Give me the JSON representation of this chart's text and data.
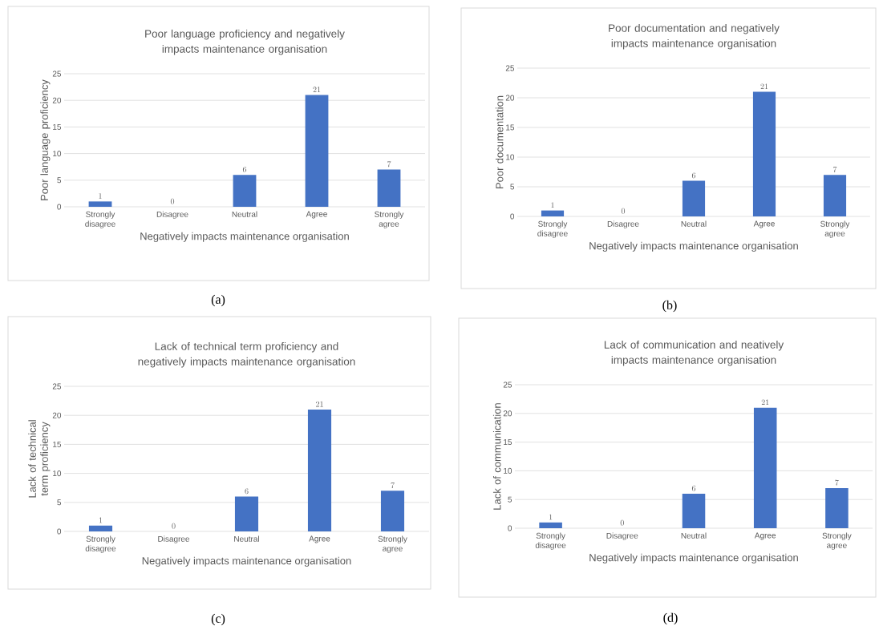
{
  "chart_data": [
    {
      "type": "bar",
      "title": "Poor language proficiency and negatively impacts maintenance organisation",
      "xlabel": "Negatively impacts maintenance organisation",
      "ylabel": "Poor language proficiency",
      "categories": [
        "Strongly disagree",
        "Disagree",
        "Neutral",
        "Agree",
        "Strongly agree"
      ],
      "values": [
        1,
        0,
        6,
        21,
        7
      ],
      "color": "#4472c4",
      "ylim": [
        0,
        25
      ],
      "yticks": [
        0,
        5,
        10,
        15,
        20,
        25
      ],
      "grid": "y",
      "data_labels": true,
      "annotations": [
        "(a)"
      ]
    },
    {
      "type": "bar",
      "title": "Poor documentation and negatively impacts maintenance organisation",
      "xlabel": "Negatively impacts maintenance organisation",
      "ylabel": "Poor documentation",
      "categories": [
        "Strongly disagree",
        "Disagree",
        "Neutral",
        "Agree",
        "Strongly agree"
      ],
      "values": [
        1,
        0,
        6,
        21,
        7
      ],
      "color": "#4472c4",
      "ylim": [
        0,
        25
      ],
      "yticks": [
        0,
        5,
        10,
        15,
        20,
        25
      ],
      "grid": "y",
      "data_labels": true,
      "annotations": [
        "(b)"
      ]
    },
    {
      "type": "bar",
      "title": "Lack of technical term proficiency and negatively impacts maintenance organisation",
      "xlabel": "Negatively impacts maintenance organisation",
      "ylabel": "Lack of technical term proficiency",
      "categories": [
        "Strongly disagree",
        "Disagree",
        "Neutral",
        "Agree",
        "Strongly agree"
      ],
      "values": [
        1,
        0,
        6,
        21,
        7
      ],
      "color": "#4472c4",
      "ylim": [
        0,
        25
      ],
      "yticks": [
        0,
        5,
        10,
        15,
        20,
        25
      ],
      "grid": "y",
      "data_labels": true,
      "annotations": [
        "(c)"
      ]
    },
    {
      "type": "bar",
      "title": "Lack of communication and neatively impacts maintenance organisation",
      "xlabel": "Negatively impacts maintenance organisation",
      "ylabel": "Lack of communication",
      "categories": [
        "Strongly disagree",
        "Disagree",
        "Neutral",
        "Agree",
        "Strongly agree"
      ],
      "values": [
        1,
        0,
        6,
        21,
        7
      ],
      "color": "#4472c4",
      "ylim": [
        0,
        25
      ],
      "yticks": [
        0,
        5,
        10,
        15,
        20,
        25
      ],
      "grid": "y",
      "data_labels": true,
      "annotations": [
        "(d)"
      ]
    }
  ]
}
